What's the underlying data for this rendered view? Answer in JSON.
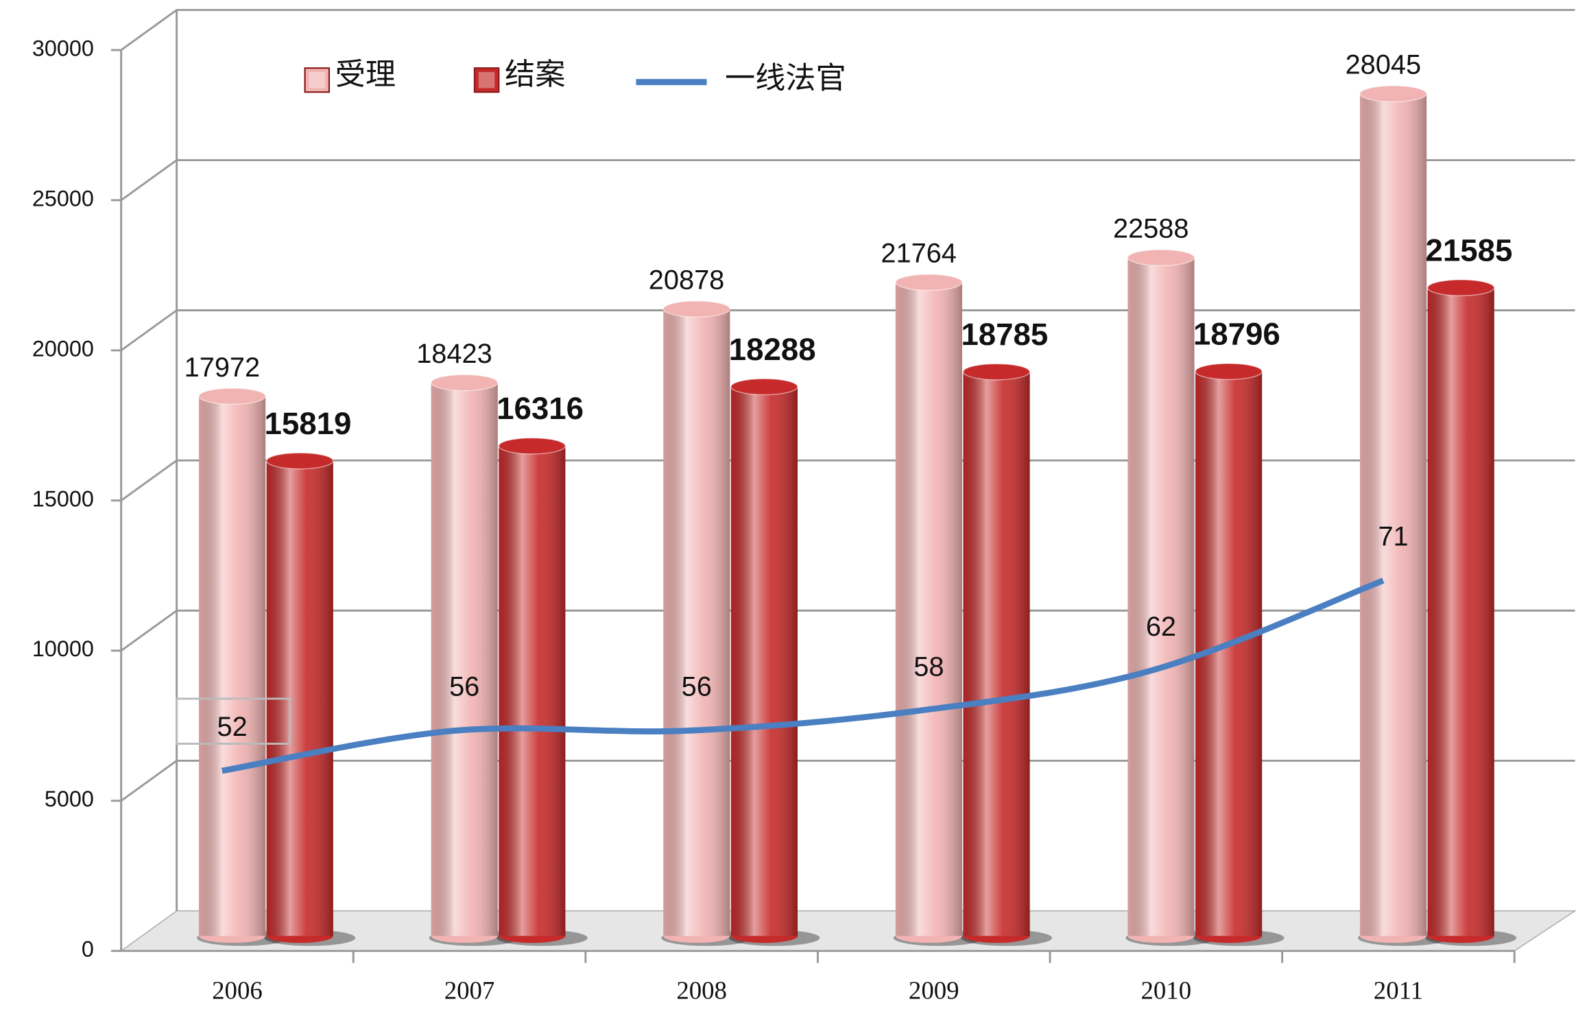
{
  "chart_data": {
    "type": "bar",
    "categories": [
      "2006",
      "2007",
      "2008",
      "2009",
      "2010",
      "2011"
    ],
    "series": [
      {
        "name": "受理",
        "color": "#f2b3b3",
        "values": [
          17972,
          18423,
          20878,
          21764,
          22588,
          28045
        ]
      },
      {
        "name": "结案",
        "color": "#c62a2a",
        "values": [
          15819,
          16316,
          18288,
          18785,
          18796,
          21585
        ]
      },
      {
        "name": "一线法官",
        "color": "#4a7fc1",
        "type": "line",
        "axis": "y2",
        "values": [
          52,
          56,
          56,
          58,
          62,
          71
        ]
      }
    ],
    "ylim": [
      0,
      30000
    ],
    "yticks": [
      0,
      5000,
      10000,
      15000,
      20000,
      25000,
      30000
    ],
    "y2lim": [
      34,
      124
    ],
    "grid": true
  }
}
